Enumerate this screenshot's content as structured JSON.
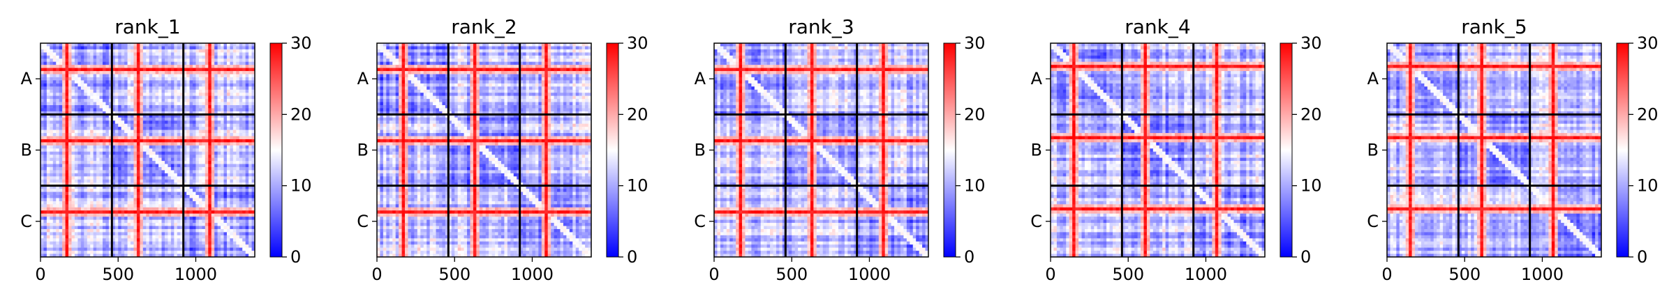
{
  "chart_data": [
    {
      "type": "heatmap",
      "title": "rank_1",
      "chains": [
        "A",
        "B",
        "C"
      ],
      "chain_boundaries": [
        460,
        920
      ],
      "x_ticks": [
        0,
        500,
        1000
      ],
      "x_range": [
        0,
        1380
      ],
      "colorbar": {
        "ticks": [
          0,
          10,
          20,
          30
        ],
        "range": [
          0,
          30
        ],
        "colormap": "bwr"
      },
      "red_stripes": [
        150,
        610,
        1070
      ],
      "pattern_seed": 1
    },
    {
      "type": "heatmap",
      "title": "rank_2",
      "chains": [
        "A",
        "B",
        "C"
      ],
      "chain_boundaries": [
        460,
        920
      ],
      "x_ticks": [
        0,
        500,
        1000
      ],
      "x_range": [
        0,
        1380
      ],
      "colorbar": {
        "ticks": [
          0,
          10,
          20,
          30
        ],
        "range": [
          0,
          30
        ],
        "colormap": "bwr"
      },
      "red_stripes": [
        150,
        610,
        1070
      ],
      "pattern_seed": 2
    },
    {
      "type": "heatmap",
      "title": "rank_3",
      "chains": [
        "A",
        "B",
        "C"
      ],
      "chain_boundaries": [
        460,
        920
      ],
      "x_ticks": [
        0,
        500,
        1000
      ],
      "x_range": [
        0,
        1380
      ],
      "colorbar": {
        "ticks": [
          0,
          10,
          20,
          30
        ],
        "range": [
          0,
          30
        ],
        "colormap": "bwr"
      },
      "red_stripes": [
        150,
        610,
        1070
      ],
      "pattern_seed": 3
    },
    {
      "type": "heatmap",
      "title": "rank_4",
      "chains": [
        "A",
        "B",
        "C"
      ],
      "chain_boundaries": [
        460,
        920
      ],
      "x_ticks": [
        0,
        500,
        1000
      ],
      "x_range": [
        0,
        1380
      ],
      "colorbar": {
        "ticks": [
          0,
          10,
          20,
          30
        ],
        "range": [
          0,
          30
        ],
        "colormap": "bwr"
      },
      "red_stripes": [
        130,
        600,
        1060
      ],
      "pattern_seed": 4
    },
    {
      "type": "heatmap",
      "title": "rank_5",
      "chains": [
        "A",
        "B",
        "C"
      ],
      "chain_boundaries": [
        460,
        920
      ],
      "x_ticks": [
        0,
        500,
        1000
      ],
      "x_range": [
        0,
        1380
      ],
      "colorbar": {
        "ticks": [
          0,
          10,
          20,
          30
        ],
        "range": [
          0,
          30
        ],
        "colormap": "bwr"
      },
      "red_stripes": [
        130,
        600,
        1060
      ],
      "pattern_seed": 5
    }
  ]
}
